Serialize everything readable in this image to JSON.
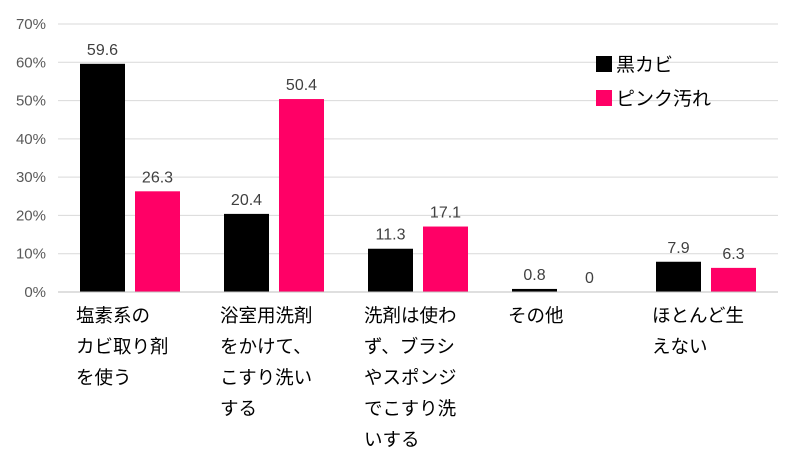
{
  "chart_data": {
    "type": "bar",
    "title": "",
    "xlabel": "",
    "ylabel": "",
    "ylim": [
      0,
      70
    ],
    "yticks": [
      0,
      10,
      20,
      30,
      40,
      50,
      60,
      70
    ],
    "ytick_suffix": "%",
    "grid": "horizontal",
    "legend_position": "top-right",
    "categories": [
      [
        "塩素系の",
        "カビ取り剤",
        "を使う"
      ],
      [
        "浴室用洗剤",
        "をかけて、",
        "こすり洗い",
        "する"
      ],
      [
        "洗剤は使わ",
        "ず、ブラシ",
        "やスポンジ",
        "でこすり洗",
        "いする"
      ],
      [
        "その他"
      ],
      [
        "ほとんど生",
        "えない"
      ]
    ],
    "series": [
      {
        "name": "黒カビ",
        "color": "#000000",
        "values": [
          59.6,
          20.4,
          11.3,
          0.8,
          7.9
        ]
      },
      {
        "name": "ピンク汚れ",
        "color": "#ff0066",
        "values": [
          26.3,
          50.4,
          17.1,
          0,
          6.3
        ]
      }
    ]
  }
}
